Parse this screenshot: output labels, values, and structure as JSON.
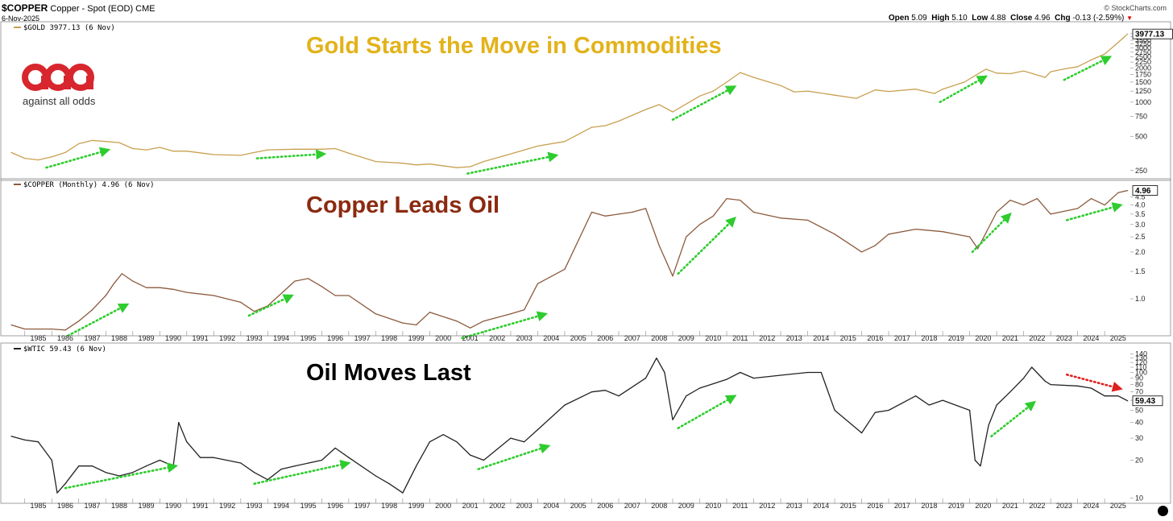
{
  "header": {
    "symbol": "$COPPER",
    "description": "Copper - Spot (EOD) CME",
    "date": "6-Nov-2025",
    "brand": "© StockCharts.com",
    "ohlc": {
      "open_label": "Open",
      "open": "5.09",
      "high_label": "High",
      "high": "5.10",
      "low_label": "Low",
      "low": "4.88",
      "close_label": "Close",
      "close": "4.96",
      "chg_label": "Chg",
      "chg": "-0.13 (-2.59%)"
    }
  },
  "logo": {
    "text": "against all odds",
    "mark": "aao",
    "color": "#d8262e"
  },
  "chart_data": [
    {
      "type": "line",
      "title": "Gold Starts the Move in Commodities",
      "title_color": "#e3b21a",
      "line_color": "#c8a050",
      "legend_label": "$GOLD 3977.13 (6 Nov)",
      "last_value_label": "3977.13",
      "scale": "log",
      "ylim": [
        215,
        4400
      ],
      "y_ticks": [
        "250",
        "500",
        "750",
        "1000",
        "1250",
        "1500",
        "1750",
        "2000",
        "2250",
        "2500",
        "2750",
        "3000",
        "3250",
        "3500",
        "3750",
        "4000"
      ],
      "x": [
        1984.5,
        1985,
        1985.5,
        1986,
        1986.5,
        1987,
        1987.5,
        1988,
        1988.5,
        1989,
        1989.5,
        1990,
        1990.5,
        1991,
        1992,
        1993,
        1993.5,
        1994,
        1995,
        1996,
        1996.5,
        1997,
        1998,
        1999,
        1999.5,
        2000,
        2001,
        2001.5,
        2002,
        2003,
        2004,
        2005,
        2006,
        2006.5,
        2007,
        2008,
        2008.5,
        2009,
        2010,
        2010.5,
        2011,
        2011.5,
        2012,
        2013,
        2013.5,
        2014,
        2015,
        2015.8,
        2016.5,
        2017,
        2018,
        2018.7,
        2019,
        2019.8,
        2020.6,
        2021,
        2021.5,
        2022,
        2022.8,
        2023,
        2023.5,
        2024,
        2024.5,
        2025,
        2025.5,
        2025.85
      ],
      "values": [
        360,
        320,
        310,
        330,
        360,
        430,
        460,
        450,
        440,
        390,
        380,
        400,
        370,
        370,
        345,
        340,
        360,
        380,
        385,
        385,
        390,
        355,
        300,
        290,
        280,
        285,
        265,
        270,
        300,
        350,
        410,
        450,
        600,
        620,
        680,
        860,
        950,
        820,
        1130,
        1250,
        1500,
        1820,
        1650,
        1400,
        1230,
        1250,
        1150,
        1080,
        1280,
        1240,
        1300,
        1190,
        1300,
        1500,
        1950,
        1800,
        1780,
        1880,
        1650,
        1850,
        1960,
        2050,
        2350,
        2650,
        3350,
        3977
      ],
      "arrows": [
        {
          "from": [
            1985.8,
            265
          ],
          "to": [
            1988.1,
            380
          ],
          "color": "#2ecc2e"
        },
        {
          "from": [
            1993.6,
            320
          ],
          "to": [
            1996.1,
            350
          ],
          "color": "#2ecc2e"
        },
        {
          "from": [
            2001.4,
            235
          ],
          "to": [
            2004.7,
            340
          ],
          "color": "#2ecc2e"
        },
        {
          "from": [
            2009,
            700
          ],
          "to": [
            2011.3,
            1370
          ],
          "color": "#2ecc2e"
        },
        {
          "from": [
            2018.9,
            1000
          ],
          "to": [
            2020.6,
            1680
          ],
          "color": "#2ecc2e"
        },
        {
          "from": [
            2023.5,
            1570
          ],
          "to": [
            2025.2,
            2500
          ],
          "color": "#2ecc2e"
        }
      ]
    },
    {
      "type": "line",
      "title": "Copper Leads Oil",
      "title_color": "#8b2a10",
      "line_color": "#8b5a3c",
      "legend_label": "$COPPER (Monthly) 4.96 (6 Nov)",
      "last_value_label": "4.96",
      "scale": "log",
      "ylim": [
        0.6,
        5.3
      ],
      "y_ticks": [
        "1.0",
        "1.5",
        "2.0",
        "2.5",
        "3.0",
        "3.5",
        "4.0",
        "4.5"
      ],
      "x": [
        1984.5,
        1985,
        1985.5,
        1986,
        1986.5,
        1987,
        1987.5,
        1988,
        1988.3,
        1988.6,
        1989,
        1989.5,
        1990,
        1990.5,
        1991,
        1992,
        1993,
        1993.5,
        1994,
        1995,
        1995.5,
        1996,
        1996.5,
        1997,
        1998,
        1999,
        1999.5,
        2000,
        2001,
        2001.5,
        2002,
        2003,
        2003.5,
        2004,
        2005,
        2006,
        2006.5,
        2007,
        2007.5,
        2008,
        2008.5,
        2009,
        2009.5,
        2010,
        2010.5,
        2011,
        2011.5,
        2012,
        2013,
        2014,
        2015,
        2016,
        2016.5,
        2017,
        2018,
        2019,
        2020,
        2020.3,
        2021,
        2021.5,
        2022,
        2022.5,
        2023,
        2024,
        2024.5,
        2025,
        2025.5,
        2025.85
      ],
      "values": [
        0.68,
        0.64,
        0.64,
        0.64,
        0.63,
        0.72,
        0.85,
        1.05,
        1.25,
        1.45,
        1.3,
        1.18,
        1.18,
        1.15,
        1.1,
        1.05,
        0.95,
        0.83,
        0.9,
        1.3,
        1.35,
        1.2,
        1.05,
        1.05,
        0.8,
        0.7,
        0.68,
        0.82,
        0.72,
        0.65,
        0.72,
        0.8,
        0.85,
        1.25,
        1.55,
        3.6,
        3.4,
        3.5,
        3.6,
        3.8,
        2.2,
        1.4,
        2.5,
        3.0,
        3.4,
        4.4,
        4.3,
        3.6,
        3.3,
        3.2,
        2.6,
        2.0,
        2.2,
        2.6,
        2.8,
        2.7,
        2.5,
        2.1,
        3.6,
        4.3,
        4.0,
        4.4,
        3.5,
        3.8,
        4.4,
        4.0,
        4.8,
        4.96
      ],
      "arrows": [
        {
          "from": [
            1986.6,
            0.58
          ],
          "to": [
            1988.8,
            0.92
          ],
          "color": "#2ecc2e"
        },
        {
          "from": [
            1993.3,
            0.78
          ],
          "to": [
            1994.9,
            1.05
          ],
          "color": "#2ecc2e"
        },
        {
          "from": [
            2001.2,
            0.56
          ],
          "to": [
            2004.3,
            0.8
          ],
          "color": "#2ecc2e"
        },
        {
          "from": [
            2009.2,
            1.45
          ],
          "to": [
            2011.3,
            3.3
          ],
          "color": "#2ecc2e"
        },
        {
          "from": [
            2020.1,
            2.0
          ],
          "to": [
            2021.5,
            3.5
          ],
          "color": "#2ecc2e"
        },
        {
          "from": [
            2023.6,
            3.2
          ],
          "to": [
            2025.6,
            4.0
          ],
          "color": "#2ecc2e"
        }
      ]
    },
    {
      "type": "line",
      "title": "Oil Moves Last",
      "title_color": "#000000",
      "line_color": "#222222",
      "legend_label": "$WTIC 59.43 (6 Nov)",
      "last_value_label": "59.43",
      "scale": "log",
      "ylim": [
        9.5,
        150
      ],
      "y_ticks": [
        "10",
        "20",
        "30",
        "40",
        "50",
        "60",
        "70",
        "80",
        "90",
        "100",
        "110",
        "120",
        "130",
        "140"
      ],
      "x": [
        1984.5,
        1985,
        1985.5,
        1986,
        1986.2,
        1986.5,
        1987,
        1987.5,
        1988,
        1988.5,
        1989,
        1989.5,
        1990,
        1990.5,
        1990.7,
        1991,
        1991.5,
        1992,
        1993,
        1993.5,
        1994,
        1994.5,
        1995,
        1996,
        1996.5,
        1997,
        1998,
        1998.5,
        1999,
        1999.5,
        2000,
        2000.5,
        2001,
        2001.5,
        2002,
        2003,
        2003.5,
        2004,
        2005,
        2006,
        2006.5,
        2007,
        2008,
        2008.4,
        2008.7,
        2009,
        2009.5,
        2010,
        2011,
        2011.5,
        2012,
        2013,
        2014,
        2014.5,
        2015,
        2016,
        2016.5,
        2017,
        2018,
        2018.5,
        2019,
        2020,
        2020.2,
        2020.4,
        2020.7,
        2021,
        2021.5,
        2022,
        2022.3,
        2022.8,
        2023,
        2024,
        2024.5,
        2025,
        2025.5,
        2025.85
      ],
      "values": [
        31,
        29,
        28,
        20,
        11,
        13,
        18,
        18,
        16,
        15,
        16,
        18,
        20,
        18,
        40,
        28,
        21,
        21,
        19,
        16,
        14,
        17,
        18,
        20,
        25,
        21,
        15,
        13,
        11,
        18,
        28,
        32,
        28,
        22,
        20,
        30,
        28,
        35,
        55,
        70,
        72,
        65,
        90,
        130,
        100,
        42,
        65,
        75,
        88,
        100,
        90,
        95,
        100,
        100,
        50,
        33,
        48,
        50,
        65,
        55,
        60,
        50,
        20,
        18,
        38,
        55,
        70,
        90,
        110,
        85,
        80,
        78,
        75,
        65,
        65,
        59.43
      ],
      "arrows": [
        {
          "from": [
            1986.5,
            12
          ],
          "to": [
            1990.6,
            18
          ],
          "color": "#2ecc2e"
        },
        {
          "from": [
            1993.5,
            13
          ],
          "to": [
            1997.0,
            19
          ],
          "color": "#2ecc2e"
        },
        {
          "from": [
            2001.8,
            17
          ],
          "to": [
            2004.4,
            26
          ],
          "color": "#2ecc2e"
        },
        {
          "from": [
            2009.2,
            36
          ],
          "to": [
            2011.3,
            65
          ],
          "color": "#2ecc2e"
        },
        {
          "from": [
            2020.8,
            31
          ],
          "to": [
            2022.4,
            58
          ],
          "color": "#2ecc2e"
        },
        {
          "from": [
            2023.6,
            96
          ],
          "to": [
            2025.6,
            74
          ],
          "color": "#e02020"
        }
      ]
    }
  ],
  "x_ticks": [
    "1985",
    "1986",
    "1987",
    "1988",
    "1989",
    "1990",
    "1991",
    "1992",
    "1993",
    "1994",
    "1995",
    "1996",
    "1997",
    "1998",
    "1999",
    "2000",
    "2001",
    "2002",
    "2003",
    "2004",
    "2005",
    "2006",
    "2007",
    "2008",
    "2009",
    "2010",
    "2011",
    "2012",
    "2013",
    "2014",
    "2015",
    "2016",
    "2017",
    "2018",
    "2019",
    "2020",
    "2021",
    "2022",
    "2023",
    "2024",
    "2025"
  ]
}
